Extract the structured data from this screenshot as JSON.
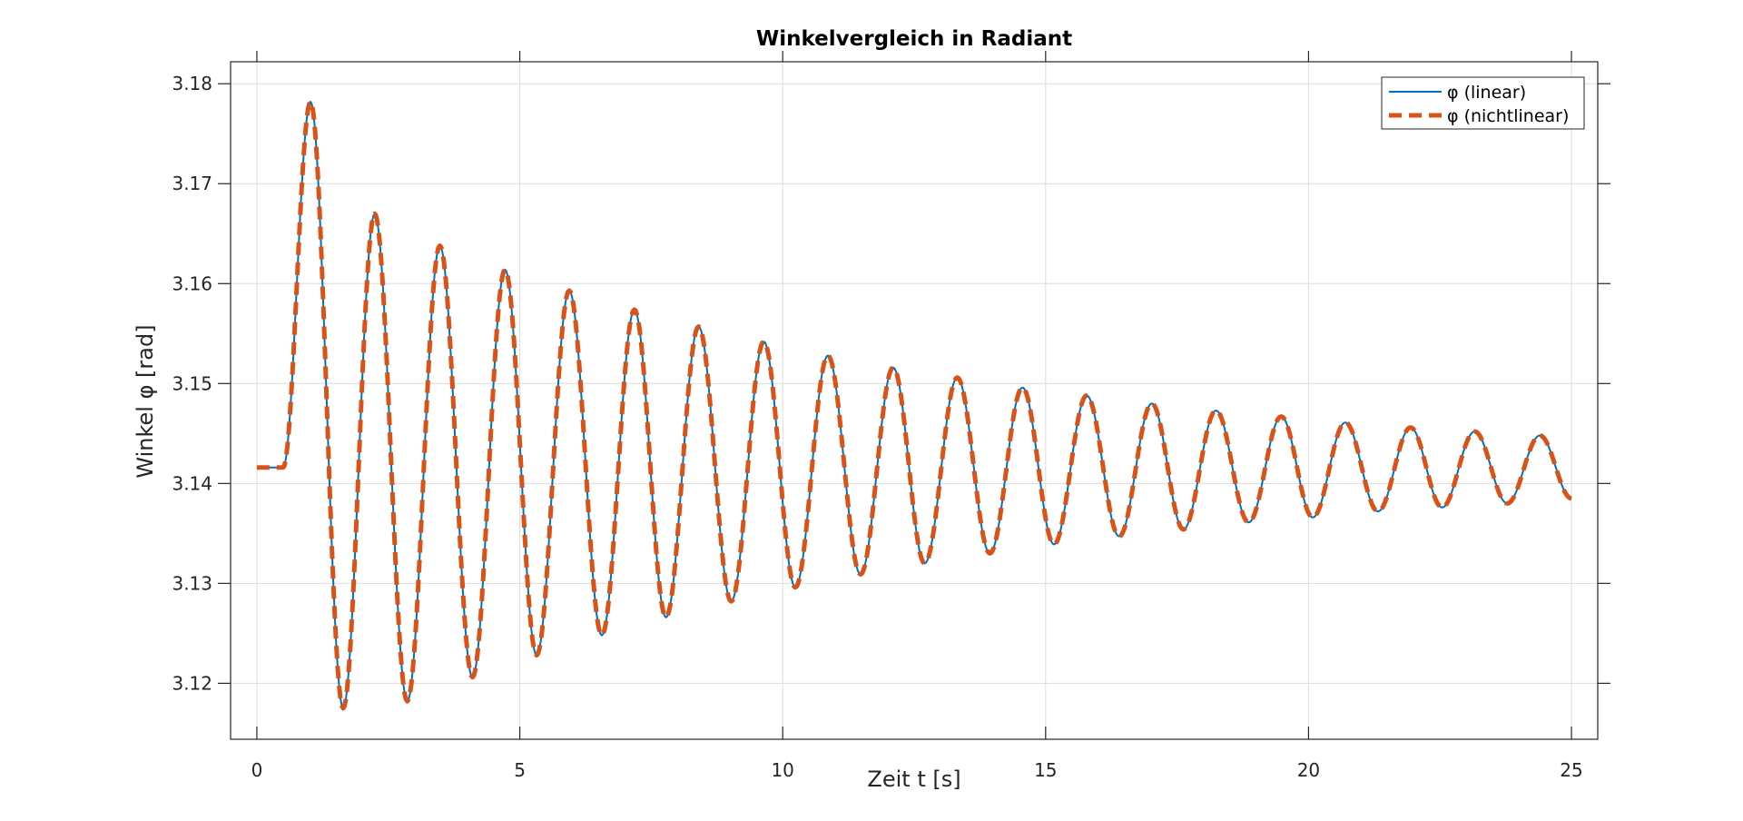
{
  "chart_data": {
    "type": "line",
    "title": "Winkelvergleich in Radiant",
    "xlabel": "Zeit t [s]",
    "ylabel": "Winkel φ [rad]",
    "xlim": [
      -0.5,
      25.5
    ],
    "ylim": [
      3.1144,
      3.1822
    ],
    "xticks": [
      0,
      5,
      10,
      15,
      20,
      25
    ],
    "yticks": [
      3.12,
      3.13,
      3.14,
      3.15,
      3.16,
      3.17,
      3.18
    ],
    "ytick_labels": [
      "3.12",
      "3.13",
      "3.14",
      "3.15",
      "3.16",
      "3.17",
      "3.18"
    ],
    "grid": true,
    "legend_position": "top-right",
    "series": [
      {
        "name": "φ (linear)",
        "color": "#0072BD",
        "style": "solid",
        "x": [
          0,
          0.5,
          1.02,
          1.64,
          2.24,
          2.86,
          3.48,
          4.1,
          4.72,
          5.32,
          5.94,
          6.56,
          7.18,
          7.78,
          8.4,
          9.02,
          9.64,
          10.24,
          10.86,
          11.48,
          12.1,
          12.7,
          13.32,
          13.94,
          14.56,
          15.16,
          15.78,
          16.4,
          17.02,
          17.62,
          18.24,
          18.86,
          19.48,
          20.08,
          20.7,
          21.32,
          21.94,
          22.54,
          23.16,
          23.78,
          24.4,
          25.0
        ],
        "y": [
          3.1416,
          3.1416,
          3.1782,
          3.1175,
          3.167,
          3.1182,
          3.1638,
          3.1206,
          3.1614,
          3.1228,
          3.1593,
          3.1248,
          3.1574,
          3.1266,
          3.1557,
          3.1282,
          3.1542,
          3.1296,
          3.1528,
          3.1309,
          3.1516,
          3.132,
          3.1506,
          3.133,
          3.1496,
          3.1339,
          3.1488,
          3.1347,
          3.148,
          3.1354,
          3.1473,
          3.1361,
          3.1467,
          3.1366,
          3.1461,
          3.1372,
          3.1456,
          3.1376,
          3.1452,
          3.138,
          3.1448,
          3.1385
        ]
      },
      {
        "name": "φ (nichtlinear)",
        "color": "#D95319",
        "style": "dashed",
        "x": [
          0,
          0.5,
          1.02,
          1.64,
          2.24,
          2.86,
          3.48,
          4.1,
          4.72,
          5.32,
          5.94,
          6.56,
          7.18,
          7.78,
          8.4,
          9.02,
          9.64,
          10.24,
          10.86,
          11.48,
          12.1,
          12.7,
          13.32,
          13.94,
          14.56,
          15.16,
          15.78,
          16.4,
          17.02,
          17.62,
          18.24,
          18.86,
          19.48,
          20.08,
          20.7,
          21.32,
          21.94,
          22.54,
          23.16,
          23.78,
          24.4,
          25.0
        ],
        "y": [
          3.1416,
          3.1416,
          3.1782,
          3.1175,
          3.167,
          3.1182,
          3.1638,
          3.1206,
          3.1614,
          3.1228,
          3.1593,
          3.1248,
          3.1574,
          3.1266,
          3.1557,
          3.1282,
          3.1542,
          3.1296,
          3.1528,
          3.1309,
          3.1516,
          3.132,
          3.1506,
          3.133,
          3.1496,
          3.1339,
          3.1488,
          3.1347,
          3.148,
          3.1354,
          3.1473,
          3.1361,
          3.1467,
          3.1366,
          3.1461,
          3.1372,
          3.1456,
          3.1376,
          3.1452,
          3.138,
          3.1448,
          3.1385
        ]
      }
    ]
  }
}
